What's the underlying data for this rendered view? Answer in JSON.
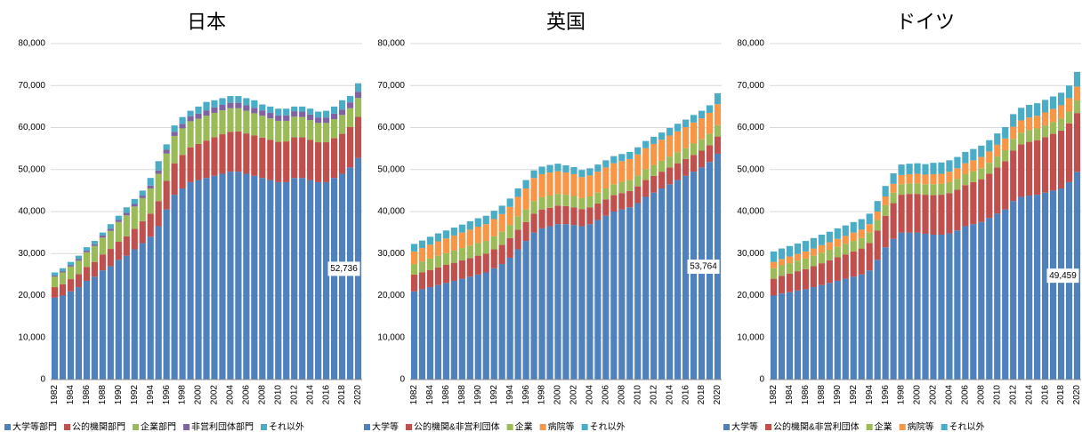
{
  "chart_data": [
    {
      "type": "stacked_bar",
      "title": "日本",
      "categories": [
        "1982",
        null,
        "1984",
        null,
        "1986",
        null,
        "1988",
        null,
        "1990",
        null,
        "1992",
        null,
        "1994",
        null,
        "1996",
        null,
        "1998",
        null,
        "2000",
        null,
        "2002",
        null,
        "2004",
        null,
        "2006",
        null,
        "2008",
        null,
        "2010",
        null,
        "2012",
        null,
        "2014",
        null,
        "2016",
        null,
        "2018",
        null,
        "2020"
      ],
      "ylim": [
        0,
        80000
      ],
      "yticks": [
        0,
        {
          "value": 10000,
          "label": "10,000"
        },
        {
          "value": 20000,
          "label": "20,000"
        },
        {
          "value": 30000,
          "label": "30,000"
        },
        {
          "value": 40000,
          "label": "40,000"
        },
        {
          "value": 50000,
          "label": "50,000"
        },
        {
          "value": 60000,
          "label": "60,000"
        },
        {
          "value": 70000,
          "label": "70,000"
        },
        {
          "value": 80000,
          "label": "80,000"
        }
      ],
      "grid": true,
      "series": [
        {
          "name": "大学等部門",
          "color": "#4f81bd",
          "values": [
            19500,
            20000,
            21000,
            22000,
            23500,
            24500,
            26000,
            27000,
            28500,
            29500,
            31000,
            32500,
            34000,
            36500,
            40500,
            44000,
            45500,
            47000,
            47500,
            48000,
            48500,
            49000,
            49500,
            49500,
            49000,
            48500,
            48000,
            47500,
            47000,
            47000,
            48000,
            48000,
            47500,
            47000,
            47000,
            48000,
            49000,
            50500,
            52736
          ],
          "value_labels": [
            null,
            null,
            null,
            null,
            null,
            null,
            null,
            null,
            null,
            null,
            null,
            null,
            null,
            null,
            null,
            null,
            null,
            null,
            null,
            null,
            null,
            null,
            null,
            null,
            null,
            null,
            null,
            null,
            null,
            null,
            null,
            null,
            null,
            null,
            null,
            null,
            null,
            null,
            "52,736"
          ]
        },
        {
          "name": "公的機関部門",
          "color": "#c0504d",
          "values": [
            2500,
            2700,
            2900,
            3100,
            3300,
            3500,
            3800,
            4100,
            4300,
            4600,
            4900,
            5200,
            5500,
            6000,
            6800,
            7500,
            8000,
            8300,
            8600,
            8900,
            9200,
            9400,
            9500,
            9600,
            9600,
            9600,
            9600,
            9600,
            9600,
            9700,
            9700,
            9700,
            9600,
            9500,
            9500,
            9500,
            9500,
            9600,
            9800
          ]
        },
        {
          "name": "企業部門",
          "color": "#9bbb59",
          "values": [
            2500,
            2800,
            3000,
            3200,
            3500,
            3800,
            4000,
            4300,
            4700,
            5000,
            5300,
            5500,
            6000,
            6500,
            6500,
            6500,
            6300,
            6200,
            6000,
            5900,
            5800,
            5700,
            5600,
            5500,
            5400,
            5300,
            5200,
            5100,
            5000,
            4900,
            4900,
            4800,
            4700,
            4600,
            4600,
            4500,
            4500,
            4500,
            4500
          ]
        },
        {
          "name": "非営利団体部門",
          "color": "#8064a2",
          "values": [
            300,
            300,
            300,
            400,
            400,
            400,
            500,
            500,
            500,
            600,
            600,
            600,
            700,
            800,
            900,
            1000,
            1100,
            1200,
            1200,
            1300,
            1300,
            1300,
            1300,
            1300,
            1300,
            1300,
            1300,
            1300,
            1300,
            1300,
            1300,
            1300,
            1300,
            1300,
            1300,
            1300,
            1300,
            1400,
            1500
          ]
        },
        {
          "name": "それ以外",
          "color": "#4bacc6",
          "values": [
            700,
            700,
            800,
            800,
            800,
            800,
            700,
            1100,
            1000,
            1300,
            1200,
            1200,
            1800,
            2200,
            1300,
            1500,
            1600,
            1300,
            1700,
            2000,
            1700,
            1600,
            1600,
            1600,
            1700,
            1800,
            1400,
            1500,
            1600,
            1600,
            1100,
            1200,
            1400,
            1400,
            1600,
            1700,
            2200,
            1500,
            2000
          ]
        }
      ]
    },
    {
      "type": "stacked_bar",
      "title": "英国",
      "categories": [
        "1982",
        null,
        "1984",
        null,
        "1986",
        null,
        "1988",
        null,
        "1990",
        null,
        "1992",
        null,
        "1994",
        null,
        "1996",
        null,
        "1998",
        null,
        "2000",
        null,
        "2002",
        null,
        "2004",
        null,
        "2006",
        null,
        "2008",
        null,
        "2010",
        null,
        "2012",
        null,
        "2014",
        null,
        "2016",
        null,
        "2018",
        null,
        "2020"
      ],
      "ylim": [
        0,
        80000
      ],
      "yticks": [
        0,
        {
          "value": 10000,
          "label": "10,000"
        },
        {
          "value": 20000,
          "label": "20,000"
        },
        {
          "value": 30000,
          "label": "30,000"
        },
        {
          "value": 40000,
          "label": "40,000"
        },
        {
          "value": 50000,
          "label": "50,000"
        },
        {
          "value": 60000,
          "label": "60,000"
        },
        {
          "value": 70000,
          "label": "70,000"
        },
        {
          "value": 80000,
          "label": "80,000"
        }
      ],
      "grid": true,
      "series": [
        {
          "name": "大学等",
          "color": "#4f81bd",
          "values": [
            21000,
            21500,
            22000,
            22500,
            23000,
            23500,
            24000,
            24500,
            25000,
            25500,
            26500,
            27500,
            29000,
            31000,
            33000,
            35000,
            36000,
            36500,
            37000,
            37000,
            36800,
            36500,
            37000,
            38000,
            39000,
            40000,
            40500,
            41000,
            42000,
            43500,
            44500,
            45500,
            46500,
            47500,
            48500,
            49500,
            50500,
            51800,
            53764
          ],
          "value_labels": [
            null,
            null,
            null,
            null,
            null,
            null,
            null,
            null,
            null,
            null,
            null,
            null,
            null,
            null,
            null,
            null,
            null,
            null,
            null,
            null,
            null,
            null,
            null,
            null,
            null,
            null,
            null,
            null,
            null,
            null,
            null,
            null,
            null,
            null,
            null,
            null,
            null,
            null,
            "53,764"
          ]
        },
        {
          "name": "公的機関&非営利団体",
          "color": "#c0504d",
          "values": [
            4000,
            4000,
            4100,
            4200,
            4300,
            4300,
            4400,
            4400,
            4500,
            4500,
            4500,
            4600,
            4700,
            4700,
            4500,
            4500,
            4500,
            4400,
            4400,
            4300,
            4200,
            4100,
            4000,
            3900,
            3900,
            3900,
            3900,
            3900,
            4000,
            4000,
            4000,
            4000,
            4000,
            4000,
            4000,
            4000,
            4000,
            4000,
            4100
          ]
        },
        {
          "name": "企業",
          "color": "#9bbb59",
          "values": [
            2500,
            2600,
            2700,
            2800,
            2800,
            2900,
            2900,
            3000,
            3000,
            3000,
            3100,
            3100,
            3100,
            3200,
            3000,
            3000,
            2900,
            2900,
            2800,
            2700,
            2700,
            2600,
            2600,
            2600,
            2600,
            2600,
            2600,
            2600,
            2600,
            2600,
            2600,
            2600,
            2600,
            2600,
            2600,
            2700,
            2700,
            2700,
            2700
          ]
        },
        {
          "name": "病院等",
          "color": "#f79646",
          "values": [
            3000,
            3200,
            3300,
            3400,
            3500,
            3600,
            3700,
            3800,
            3900,
            4000,
            4100,
            4200,
            4300,
            4600,
            5000,
            5500,
            5500,
            5500,
            5400,
            5300,
            5200,
            5000,
            5000,
            5000,
            5000,
            5000,
            5000,
            5000,
            5000,
            5000,
            5000,
            5000,
            5000,
            5000,
            5000,
            5000,
            5000,
            5000,
            5000
          ]
        },
        {
          "name": "それ以外",
          "color": "#4bacc6",
          "values": [
            1800,
            1800,
            1900,
            1900,
            1900,
            1900,
            1900,
            2000,
            2000,
            2000,
            2000,
            2000,
            2000,
            2000,
            2000,
            1800,
            1800,
            1800,
            1800,
            1700,
            1700,
            1700,
            1700,
            1700,
            1700,
            1700,
            1700,
            1700,
            1700,
            1700,
            1700,
            1700,
            1800,
            1800,
            1800,
            1800,
            1800,
            1800,
            2600
          ]
        }
      ]
    },
    {
      "type": "stacked_bar",
      "title": "ドイツ",
      "categories": [
        "1982",
        null,
        "1984",
        null,
        "1986",
        null,
        "1988",
        null,
        "1990",
        null,
        "1992",
        null,
        "1994",
        null,
        "1996",
        null,
        "1998",
        null,
        "2000",
        null,
        "2002",
        null,
        "2004",
        null,
        "2006",
        null,
        "2008",
        null,
        "2010",
        null,
        "2012",
        null,
        "2014",
        null,
        "2016",
        null,
        "2018",
        null,
        "2020"
      ],
      "ylim": [
        0,
        80000
      ],
      "yticks": [
        0,
        {
          "value": 10000,
          "label": "10,000"
        },
        {
          "value": 20000,
          "label": "20,000"
        },
        {
          "value": 30000,
          "label": "30,000"
        },
        {
          "value": 40000,
          "label": "40,000"
        },
        {
          "value": 50000,
          "label": "50,000"
        },
        {
          "value": 60000,
          "label": "60,000"
        },
        {
          "value": 70000,
          "label": "70,000"
        },
        {
          "value": 80000,
          "label": "80,000"
        }
      ],
      "grid": true,
      "series": [
        {
          "name": "大学等",
          "color": "#4f81bd",
          "values": [
            20000,
            20500,
            20800,
            21200,
            21500,
            22000,
            22500,
            23000,
            23500,
            24000,
            24500,
            25000,
            26000,
            28500,
            31500,
            33500,
            35000,
            35000,
            35000,
            34700,
            34500,
            34500,
            34800,
            35500,
            36500,
            37000,
            37500,
            38500,
            39500,
            40500,
            42500,
            43500,
            43800,
            44000,
            44500,
            45000,
            45500,
            47000,
            49459
          ],
          "value_labels": [
            null,
            null,
            null,
            null,
            null,
            null,
            null,
            null,
            null,
            null,
            null,
            null,
            null,
            null,
            null,
            null,
            null,
            null,
            null,
            null,
            null,
            null,
            null,
            null,
            null,
            null,
            null,
            null,
            null,
            null,
            null,
            null,
            null,
            null,
            null,
            null,
            null,
            null,
            "49,459"
          ]
        },
        {
          "name": "公的機関&非営利団体",
          "color": "#c0504d",
          "values": [
            4000,
            4200,
            4400,
            4600,
            4800,
            5000,
            5200,
            5400,
            5600,
            5800,
            6000,
            6200,
            6500,
            7000,
            7500,
            8500,
            9000,
            9200,
            9200,
            9300,
            9400,
            9500,
            9600,
            9700,
            9800,
            10000,
            10200,
            10500,
            11000,
            11500,
            12000,
            12500,
            12800,
            13000,
            13200,
            13500,
            13800,
            14000,
            14000
          ]
        },
        {
          "name": "企業",
          "color": "#9bbb59",
          "values": [
            2500,
            2500,
            2500,
            2500,
            2500,
            2500,
            2500,
            2500,
            2500,
            2500,
            2500,
            2500,
            2500,
            2500,
            2500,
            2500,
            2500,
            2500,
            2500,
            2500,
            2600,
            2600,
            2600,
            2600,
            2600,
            2600,
            2600,
            2600,
            2600,
            2600,
            2800,
            2800,
            2800,
            2800,
            2800,
            2800,
            2800,
            2800,
            3000
          ]
        },
        {
          "name": "病院等",
          "color": "#f79646",
          "values": [
            1500,
            1500,
            1600,
            1600,
            1700,
            1700,
            1800,
            1800,
            1900,
            1900,
            2000,
            2000,
            2000,
            2000,
            2100,
            2100,
            2200,
            2200,
            2300,
            2300,
            2400,
            2400,
            2500,
            2500,
            2600,
            2600,
            2700,
            2700,
            2800,
            2800,
            2900,
            2900,
            3000,
            3000,
            3100,
            3100,
            3200,
            3200,
            3300
          ]
        },
        {
          "name": "それ以外",
          "color": "#4bacc6",
          "values": [
            2500,
            2500,
            2500,
            2500,
            2500,
            2500,
            2500,
            2500,
            2500,
            2500,
            2500,
            2500,
            2500,
            2500,
            2500,
            2500,
            2500,
            2500,
            2500,
            2500,
            2700,
            2700,
            2700,
            2700,
            2700,
            2700,
            2700,
            2700,
            2700,
            2700,
            3000,
            3000,
            3000,
            3000,
            3000,
            3000,
            3000,
            3000,
            3500
          ]
        }
      ]
    }
  ]
}
